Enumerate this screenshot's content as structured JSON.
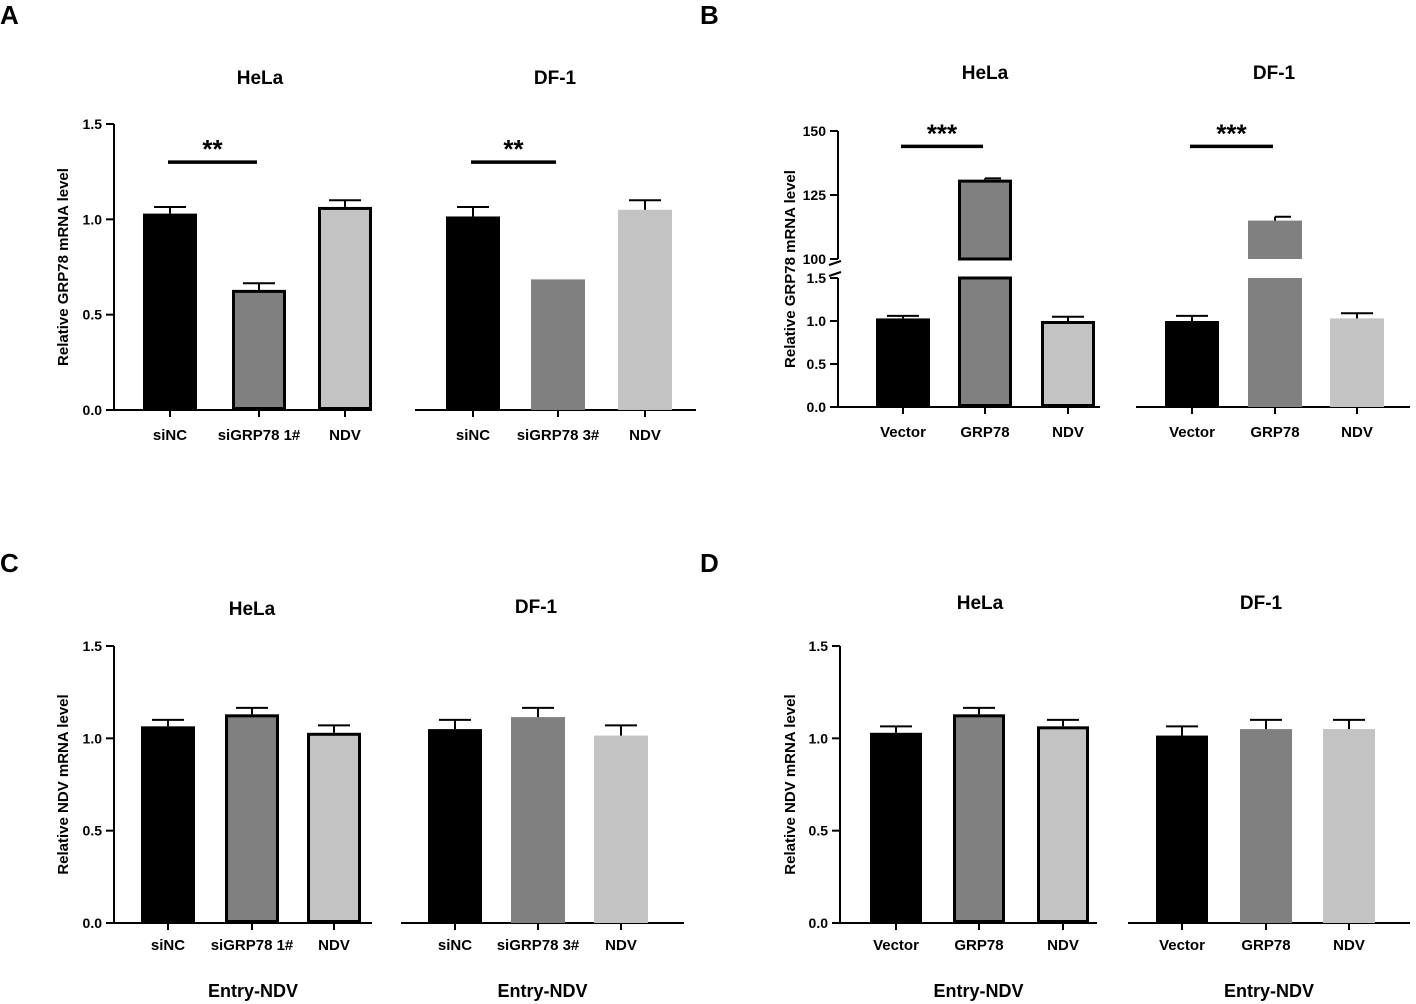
{
  "chart_data": [
    {
      "panel": "A",
      "type": "bar",
      "ylabel": "Relative GRP78 mRNA level",
      "ylim": [
        0,
        1.5
      ],
      "yticks": [
        "0.0",
        "0.5",
        "1.0",
        "1.5"
      ],
      "xlabel": "",
      "subplots": [
        {
          "title": "HeLa",
          "categories": [
            "siNC",
            "siGRP78 1#",
            "NDV"
          ],
          "values": [
            1.03,
            0.63,
            1.065
          ],
          "errors": [
            0.035,
            0.035,
            0.035
          ],
          "colors": [
            "#000000",
            "#808080",
            "#c3c3c3"
          ],
          "outlined": [
            true,
            true,
            true
          ],
          "significance": [
            {
              "from": 0,
              "to": 1,
              "label": "**",
              "level": 1.3
            }
          ]
        },
        {
          "title": "DF-1",
          "categories": [
            "siNC",
            "siGRP78 3#",
            "NDV"
          ],
          "values": [
            1.015,
            0.685,
            1.05
          ],
          "errors": [
            0.05,
            0,
            0.05
          ],
          "colors": [
            "#000000",
            "#808080",
            "#c3c3c3"
          ],
          "outlined": [
            false,
            false,
            false
          ],
          "significance": [
            {
              "from": 0,
              "to": 1,
              "label": "**",
              "level": 1.3
            }
          ]
        }
      ]
    },
    {
      "panel": "B",
      "type": "bar",
      "ylabel": "Relative GRP78 mRNA level",
      "ylim_lower": [
        0,
        1.5
      ],
      "ylim_upper": [
        100,
        150
      ],
      "yticks_lower": [
        "0.0",
        "0.5",
        "1.0",
        "1.5"
      ],
      "yticks_upper": [
        "100",
        "125",
        "150"
      ],
      "xlabel": "",
      "subplots": [
        {
          "title": "HeLa",
          "categories": [
            "Vector",
            "GRP78",
            "NDV"
          ],
          "values": [
            1.03,
            131,
            1.0
          ],
          "errors": [
            0.03,
            0.5,
            0.05
          ],
          "colors": [
            "#000000",
            "#808080",
            "#c3c3c3"
          ],
          "outlined": [
            true,
            true,
            true
          ],
          "significance": [
            {
              "from": 0,
              "to": 1,
              "label": "***",
              "level": 144
            }
          ]
        },
        {
          "title": "DF-1",
          "categories": [
            "Vector",
            "GRP78",
            "NDV"
          ],
          "values": [
            1.0,
            115,
            1.03
          ],
          "errors": [
            0.06,
            1.5,
            0.06
          ],
          "colors": [
            "#000000",
            "#808080",
            "#c3c3c3"
          ],
          "outlined": [
            false,
            false,
            false
          ],
          "significance": [
            {
              "from": 0,
              "to": 1,
              "label": "***",
              "level": 144
            }
          ]
        }
      ]
    },
    {
      "panel": "C",
      "type": "bar",
      "ylabel": "Relative NDV mRNA level",
      "ylim": [
        0,
        1.5
      ],
      "yticks": [
        "0.0",
        "0.5",
        "1.0",
        "1.5"
      ],
      "xlabel": "Entry-NDV",
      "subplots": [
        {
          "title": "HeLa",
          "categories": [
            "siNC",
            "siGRP78 1#",
            "NDV"
          ],
          "values": [
            1.065,
            1.13,
            1.03
          ],
          "errors": [
            0.035,
            0.035,
            0.04
          ],
          "colors": [
            "#000000",
            "#808080",
            "#c3c3c3"
          ],
          "outlined": [
            true,
            true,
            true
          ],
          "significance": []
        },
        {
          "title": "DF-1",
          "categories": [
            "siNC",
            "siGRP78 3#",
            "NDV"
          ],
          "values": [
            1.05,
            1.115,
            1.015
          ],
          "errors": [
            0.05,
            0.05,
            0.055
          ],
          "colors": [
            "#000000",
            "#808080",
            "#c3c3c3"
          ],
          "outlined": [
            false,
            false,
            false
          ],
          "significance": []
        }
      ]
    },
    {
      "panel": "D",
      "type": "bar",
      "ylabel": "Relative NDV mRNA level",
      "ylim": [
        0,
        1.5
      ],
      "yticks": [
        "0.0",
        "0.5",
        "1.0",
        "1.5"
      ],
      "xlabel": "Entry-NDV",
      "subplots": [
        {
          "title": "HeLa",
          "categories": [
            "Vector",
            "GRP78",
            "NDV"
          ],
          "values": [
            1.03,
            1.13,
            1.065
          ],
          "errors": [
            0.035,
            0.035,
            0.035
          ],
          "colors": [
            "#000000",
            "#808080",
            "#c3c3c3"
          ],
          "outlined": [
            true,
            true,
            true
          ],
          "significance": []
        },
        {
          "title": "DF-1",
          "categories": [
            "Vector",
            "GRP78",
            "NDV"
          ],
          "values": [
            1.015,
            1.05,
            1.05
          ],
          "errors": [
            0.05,
            0.05,
            0.05
          ],
          "colors": [
            "#000000",
            "#808080",
            "#c3c3c3"
          ],
          "outlined": [
            false,
            false,
            false
          ],
          "significance": []
        }
      ]
    }
  ]
}
